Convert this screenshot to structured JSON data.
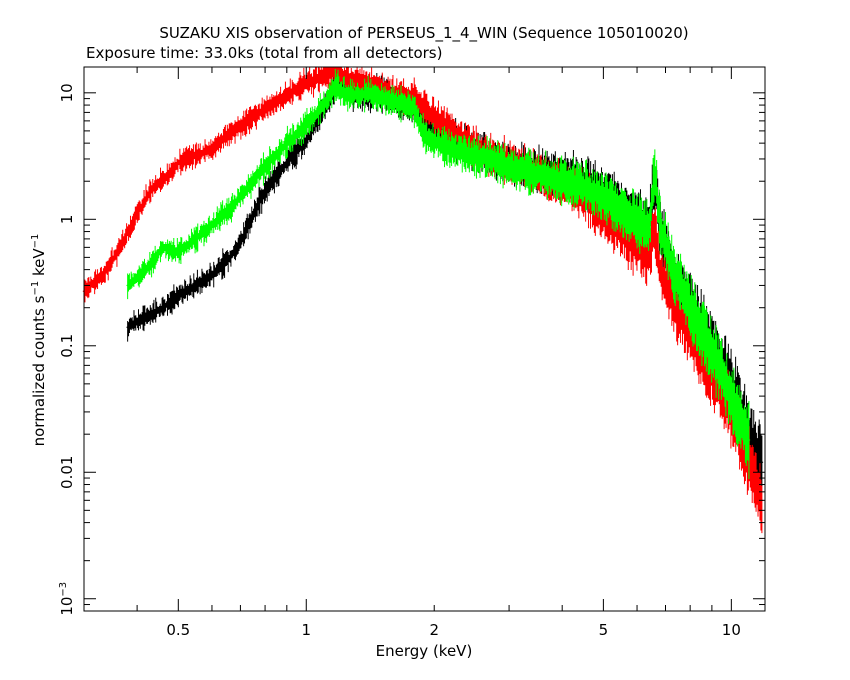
{
  "chart_data": {
    "type": "line",
    "title": "SUZAKU XIS observation of PERSEUS_1_4_WIN (Sequence 105010020)",
    "subtitle": "Exposure time: 33.0ks (total from all detectors)",
    "xlabel": "Energy (keV)",
    "ylabel": "normalized counts s",
    "ylabel_exp1": "−1",
    "ylabel_mid": " keV",
    "ylabel_exp2": "−1",
    "xscale": "log",
    "yscale": "log",
    "xlim": [
      0.3,
      12
    ],
    "ylim": [
      0.0008,
      16
    ],
    "x_ticks": [
      {
        "value": 0.5,
        "label": "0.5"
      },
      {
        "value": 1,
        "label": "1"
      },
      {
        "value": 2,
        "label": "2"
      },
      {
        "value": 5,
        "label": "5"
      },
      {
        "value": 10,
        "label": "10"
      }
    ],
    "y_ticks": [
      {
        "value": 10,
        "label": "10"
      },
      {
        "value": 1,
        "label": "1"
      },
      {
        "value": 0.1,
        "label": "0.1"
      },
      {
        "value": 0.01,
        "label": "0.01"
      },
      {
        "value": 0.001,
        "label": "10",
        "exp": "−3"
      }
    ],
    "series": [
      {
        "color": "#000000",
        "x": [
          0.38,
          0.42,
          0.46,
          0.5,
          0.55,
          0.6,
          0.66,
          0.7,
          0.75,
          0.8,
          0.9,
          1.0,
          1.1,
          1.18,
          1.3,
          1.5,
          1.7,
          1.85,
          2.0,
          2.3,
          2.6,
          3.0,
          3.5,
          4.0,
          4.5,
          5.0,
          5.5,
          6.0,
          6.4,
          6.6,
          6.8,
          7.2,
          8.0,
          9.0,
          10.0,
          11.0,
          11.8
        ],
        "y": [
          0.14,
          0.17,
          0.2,
          0.25,
          0.3,
          0.36,
          0.5,
          0.65,
          1.1,
          1.7,
          2.8,
          4.2,
          7.5,
          12,
          9.5,
          10,
          8,
          7,
          5,
          4,
          3.3,
          2.7,
          2.4,
          2.2,
          2.0,
          1.6,
          1.3,
          1.0,
          0.9,
          2.1,
          0.85,
          0.4,
          0.2,
          0.1,
          0.05,
          0.02,
          0.012
        ]
      },
      {
        "color": "#ff0000",
        "x": [
          0.3,
          0.33,
          0.36,
          0.4,
          0.43,
          0.47,
          0.5,
          0.55,
          0.6,
          0.66,
          0.72,
          0.8,
          0.9,
          1.0,
          1.1,
          1.17,
          1.25,
          1.35,
          1.5,
          1.6,
          1.8,
          2.0,
          2.3,
          2.6,
          3.0,
          3.5,
          4.0,
          4.5,
          5.0,
          5.5,
          6.0,
          6.4,
          6.6,
          6.8,
          7.2,
          8.0,
          9.0,
          10.0,
          11.0,
          11.8
        ],
        "y": [
          0.27,
          0.35,
          0.55,
          1.1,
          1.7,
          2.2,
          2.8,
          3.2,
          3.6,
          4.8,
          5.9,
          7.5,
          9.5,
          12,
          13.5,
          15,
          13,
          12,
          11.5,
          9.5,
          9,
          6.5,
          4.5,
          3.4,
          2.8,
          2.3,
          1.9,
          1.5,
          1.1,
          0.8,
          0.6,
          0.5,
          0.9,
          0.38,
          0.25,
          0.12,
          0.06,
          0.03,
          0.012,
          0.006
        ]
      },
      {
        "color": "#00ff00",
        "x": [
          0.38,
          0.42,
          0.46,
          0.5,
          0.55,
          0.6,
          0.66,
          0.72,
          0.8,
          0.9,
          1.0,
          1.1,
          1.17,
          1.25,
          1.4,
          1.6,
          1.8,
          1.9,
          2.1,
          2.4,
          2.7,
          3.0,
          3.5,
          4.0,
          4.5,
          5.0,
          5.5,
          6.0,
          6.4,
          6.6,
          6.8,
          7.2,
          8.0,
          9.0,
          10.0,
          11.0
        ],
        "y": [
          0.3,
          0.4,
          0.6,
          0.55,
          0.7,
          0.9,
          1.2,
          1.7,
          2.6,
          4,
          5.5,
          8,
          11.5,
          9.5,
          9.8,
          8.5,
          7.5,
          4.5,
          3.8,
          3.3,
          3.0,
          2.6,
          2.3,
          2.0,
          1.8,
          1.5,
          1.2,
          1.0,
          0.8,
          2.4,
          0.9,
          0.45,
          0.2,
          0.09,
          0.04,
          0.018
        ]
      }
    ]
  }
}
